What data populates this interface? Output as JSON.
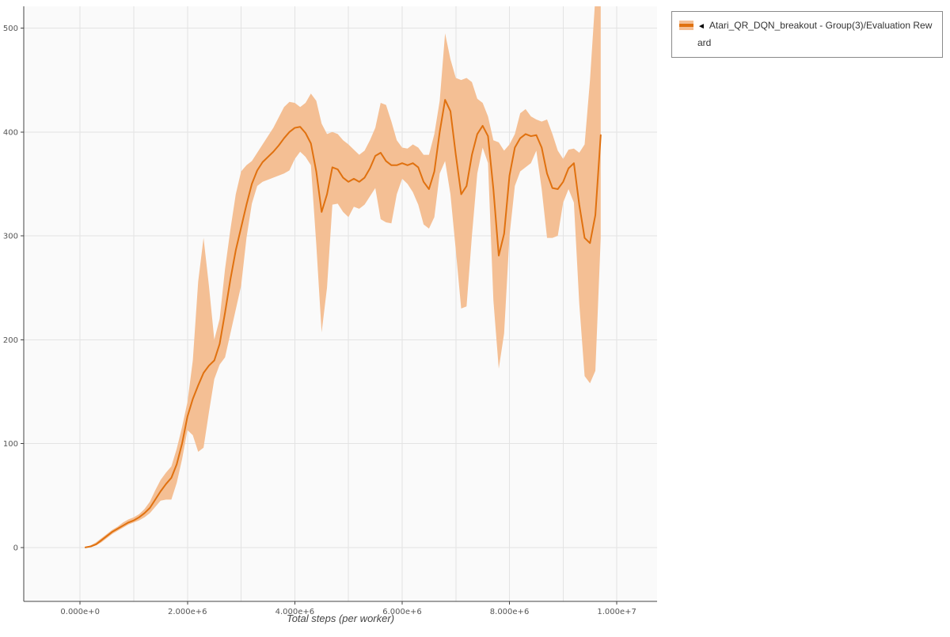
{
  "legend": {
    "arrow": "◄",
    "label": "Atari_QR_DQN_breakout - Group(3)/Evaluation Reward"
  },
  "chart_data": {
    "type": "line",
    "title": "",
    "xlabel": "Total steps (per worker)",
    "ylabel": "",
    "x_unit": "steps",
    "x_scale": 1000000,
    "xlim": [
      -1.05,
      10.75
    ],
    "ylim": [
      -52,
      521
    ],
    "grid": true,
    "legend_position": "top-right",
    "xticks": [
      {
        "v": 0,
        "label": "0.000e+0"
      },
      {
        "v": 2,
        "label": "2.000e+6"
      },
      {
        "v": 4,
        "label": "4.000e+6"
      },
      {
        "v": 6,
        "label": "6.000e+6"
      },
      {
        "v": 8,
        "label": "8.000e+6"
      },
      {
        "v": 10,
        "label": "1.000e+7"
      }
    ],
    "yticks": [
      {
        "v": 0,
        "label": "0"
      },
      {
        "v": 100,
        "label": "100"
      },
      {
        "v": 200,
        "label": "200"
      },
      {
        "v": 300,
        "label": "300"
      },
      {
        "v": 400,
        "label": "400"
      },
      {
        "v": 500,
        "label": "500"
      }
    ],
    "xgrid": [
      0,
      1,
      2,
      3,
      4,
      5,
      6,
      7,
      8,
      9,
      10
    ],
    "colors": {
      "line": "#e0710f",
      "band": "#f4bf94",
      "grid": "#e3e3e3",
      "axis": "#444444",
      "tick_text": "#555555",
      "plot_bg": "#fafafa"
    },
    "series_name": "Atari_QR_DQN_breakout - Group(3)/Evaluation Reward",
    "x": [
      0.1,
      0.2,
      0.3,
      0.4,
      0.5,
      0.6,
      0.7,
      0.8,
      0.9,
      1.0,
      1.1,
      1.2,
      1.3,
      1.4,
      1.5,
      1.6,
      1.7,
      1.8,
      1.9,
      2.0,
      2.1,
      2.2,
      2.3,
      2.4,
      2.5,
      2.6,
      2.7,
      2.8,
      2.9,
      3.0,
      3.1,
      3.2,
      3.3,
      3.4,
      3.5,
      3.6,
      3.7,
      3.8,
      3.9,
      4.0,
      4.1,
      4.2,
      4.3,
      4.4,
      4.5,
      4.6,
      4.7,
      4.8,
      4.9,
      5.0,
      5.1,
      5.2,
      5.3,
      5.4,
      5.5,
      5.6,
      5.7,
      5.8,
      5.9,
      6.0,
      6.1,
      6.2,
      6.3,
      6.4,
      6.5,
      6.6,
      6.7,
      6.8,
      6.9,
      7.0,
      7.1,
      7.2,
      7.3,
      7.4,
      7.5,
      7.6,
      7.7,
      7.8,
      7.9,
      8.0,
      8.1,
      8.2,
      8.3,
      8.4,
      8.5,
      8.6,
      8.7,
      8.8,
      8.9,
      9.0,
      9.1,
      9.2,
      9.3,
      9.4,
      9.5,
      9.6,
      9.7
    ],
    "mean": [
      0,
      1,
      3,
      7,
      11,
      15,
      18,
      21,
      24,
      26,
      29,
      33,
      38,
      46,
      54,
      61,
      67,
      80,
      100,
      126,
      143,
      156,
      168,
      175,
      180,
      196,
      226,
      258,
      286,
      308,
      330,
      350,
      363,
      371,
      376,
      381,
      387,
      394,
      400,
      404,
      405,
      399,
      389,
      362,
      323,
      340,
      366,
      364,
      356,
      352,
      355,
      352,
      356,
      365,
      377,
      380,
      372,
      368,
      368,
      370,
      368,
      370,
      366,
      352,
      345,
      362,
      400,
      431,
      420,
      378,
      340,
      348,
      378,
      398,
      406,
      396,
      345,
      281,
      302,
      358,
      385,
      394,
      398,
      396,
      397,
      385,
      360,
      346,
      345,
      352,
      365,
      370,
      330,
      298,
      293,
      320,
      397
    ],
    "lo": [
      0,
      0,
      2,
      5,
      9,
      13,
      16,
      19,
      22,
      24,
      26,
      29,
      33,
      39,
      45,
      46,
      46,
      62,
      85,
      113,
      108,
      92,
      96,
      130,
      162,
      176,
      183,
      206,
      229,
      252,
      298,
      331,
      348,
      352,
      354,
      356,
      358,
      360,
      363,
      374,
      381,
      376,
      368,
      292,
      207,
      250,
      330,
      331,
      323,
      318,
      328,
      326,
      330,
      338,
      346,
      316,
      313,
      312,
      340,
      355,
      350,
      342,
      330,
      311,
      307,
      318,
      360,
      372,
      340,
      286,
      230,
      232,
      300,
      360,
      385,
      370,
      238,
      172,
      206,
      300,
      348,
      362,
      366,
      370,
      382,
      345,
      298,
      298,
      300,
      332,
      345,
      332,
      235,
      165,
      158,
      170,
      298
    ],
    "hi": [
      0,
      2,
      5,
      9,
      13,
      17,
      20,
      24,
      27,
      29,
      32,
      37,
      44,
      55,
      65,
      72,
      78,
      95,
      116,
      140,
      180,
      256,
      298,
      252,
      200,
      220,
      268,
      306,
      340,
      362,
      368,
      372,
      380,
      388,
      396,
      404,
      414,
      424,
      429,
      428,
      424,
      428,
      437,
      430,
      408,
      398,
      400,
      398,
      392,
      388,
      383,
      378,
      382,
      392,
      404,
      428,
      426,
      410,
      392,
      385,
      384,
      388,
      385,
      378,
      378,
      398,
      430,
      495,
      470,
      452,
      450,
      452,
      448,
      432,
      428,
      415,
      392,
      390,
      382,
      388,
      398,
      418,
      422,
      415,
      412,
      410,
      412,
      398,
      382,
      374,
      383,
      384,
      380,
      388,
      450,
      530,
      535
    ]
  }
}
